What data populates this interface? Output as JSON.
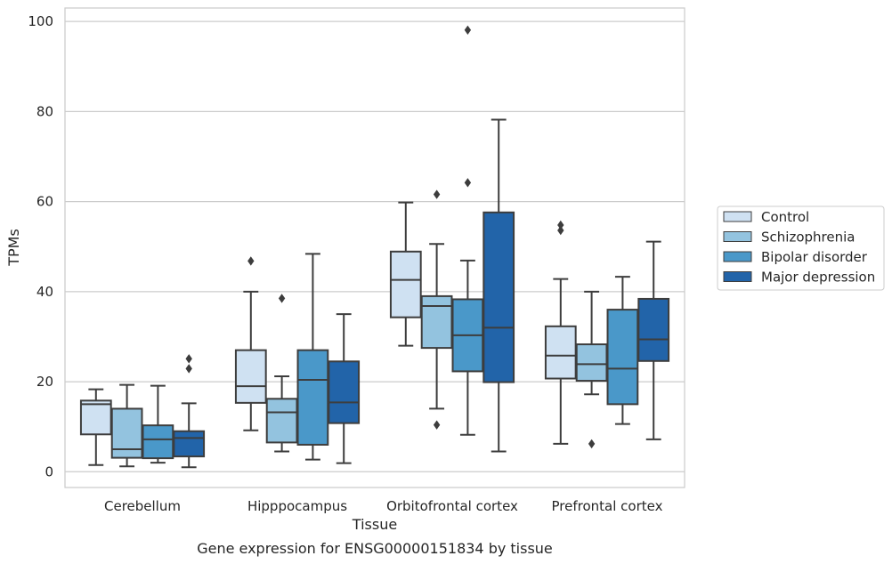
{
  "chart_data": {
    "type": "box",
    "caption": "Gene expression for ENSG00000151834 by tissue",
    "xlabel": "Tissue",
    "ylabel": "TPMs",
    "ylim": [
      -3.5,
      103
    ],
    "yticks": [
      0,
      20,
      40,
      60,
      80,
      100
    ],
    "grid": "horizontal",
    "legend_position": "outside-right",
    "categories": [
      "Cerebellum",
      "Hipppocampus",
      "Orbitofrontal cortex",
      "Prefrontal cortex"
    ],
    "series": [
      {
        "name": "Control",
        "color": "#cfe1f2",
        "boxes": [
          {
            "whislo": 1.5,
            "q1": 8.3,
            "med": 15.0,
            "q3": 15.8,
            "whishi": 18.3,
            "fliers": []
          },
          {
            "whislo": 9.2,
            "q1": 15.3,
            "med": 19.0,
            "q3": 27.0,
            "whishi": 40.0,
            "fliers": [
              46.8
            ]
          },
          {
            "whislo": 28.0,
            "q1": 34.3,
            "med": 42.6,
            "q3": 48.9,
            "whishi": 59.8,
            "fliers": []
          },
          {
            "whislo": 6.2,
            "q1": 20.7,
            "med": 25.8,
            "q3": 32.3,
            "whishi": 42.8,
            "fliers": [
              53.6,
              54.8
            ]
          }
        ]
      },
      {
        "name": "Schizophrenia",
        "color": "#93c3df",
        "boxes": [
          {
            "whislo": 1.2,
            "q1": 3.1,
            "med": 5.0,
            "q3": 14.0,
            "whishi": 19.3,
            "fliers": []
          },
          {
            "whislo": 4.5,
            "q1": 6.5,
            "med": 13.2,
            "q3": 16.2,
            "whishi": 21.2,
            "fliers": [
              38.5
            ]
          },
          {
            "whislo": 14.0,
            "q1": 27.5,
            "med": 36.8,
            "q3": 39.0,
            "whishi": 50.6,
            "fliers": [
              10.4,
              61.6
            ]
          },
          {
            "whislo": 17.2,
            "q1": 20.2,
            "med": 23.9,
            "q3": 28.3,
            "whishi": 40.0,
            "fliers": [
              6.2
            ]
          }
        ]
      },
      {
        "name": "Bipolar disorder",
        "color": "#4a98c9",
        "boxes": [
          {
            "whislo": 2.0,
            "q1": 3.0,
            "med": 7.2,
            "q3": 10.3,
            "whishi": 19.1,
            "fliers": []
          },
          {
            "whislo": 2.7,
            "q1": 6.0,
            "med": 20.4,
            "q3": 27.0,
            "whishi": 48.4,
            "fliers": []
          },
          {
            "whislo": 8.2,
            "q1": 22.3,
            "med": 30.3,
            "q3": 38.3,
            "whishi": 46.9,
            "fliers": [
              64.2,
              98.1
            ]
          },
          {
            "whislo": 10.6,
            "q1": 15.0,
            "med": 22.9,
            "q3": 36.0,
            "whishi": 43.3,
            "fliers": []
          }
        ]
      },
      {
        "name": "Major depression",
        "color": "#2264a9",
        "boxes": [
          {
            "whislo": 1.0,
            "q1": 3.4,
            "med": 7.5,
            "q3": 9.0,
            "whishi": 15.2,
            "fliers": [
              22.9,
              25.1
            ]
          },
          {
            "whislo": 1.9,
            "q1": 10.8,
            "med": 15.4,
            "q3": 24.5,
            "whishi": 35.0,
            "fliers": []
          },
          {
            "whislo": 4.5,
            "q1": 19.9,
            "med": 32.0,
            "q3": 57.6,
            "whishi": 78.2,
            "fliers": []
          },
          {
            "whislo": 7.2,
            "q1": 24.6,
            "med": 29.4,
            "q3": 38.4,
            "whishi": 51.1,
            "fliers": []
          }
        ]
      }
    ]
  }
}
